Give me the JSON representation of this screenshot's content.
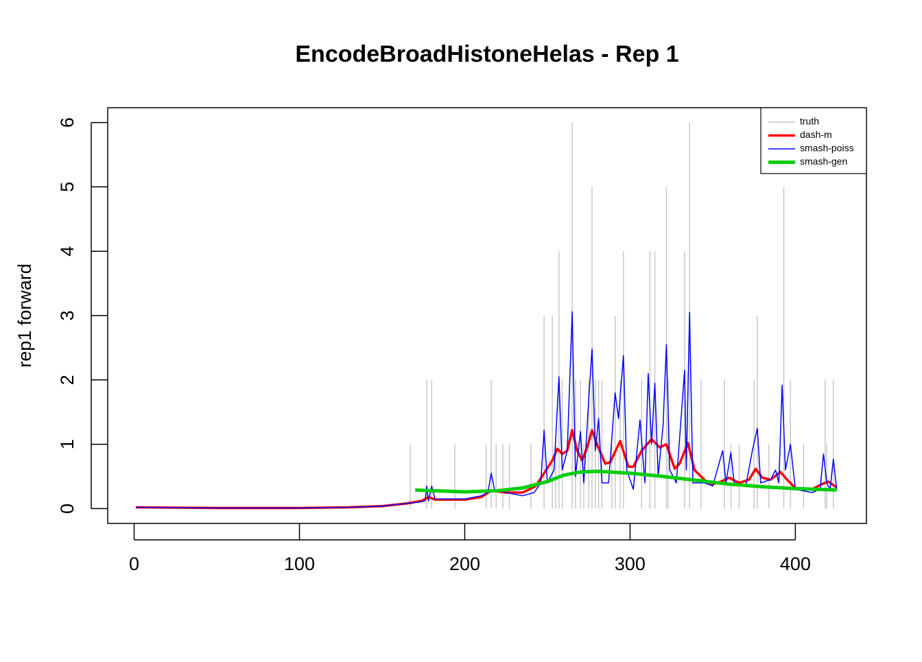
{
  "chart_data": {
    "type": "line",
    "title": "EncodeBroadHistoneHelas - Rep 1",
    "y_label": "rep1 forward",
    "xlim": [
      -16,
      443
    ],
    "ylim": [
      -0.23,
      6.23
    ],
    "xticks": [
      0,
      100,
      200,
      300,
      400
    ],
    "yticks": [
      0,
      1,
      2,
      3,
      4,
      5,
      6
    ],
    "legend": "top-right",
    "series": [
      {
        "name": "truth",
        "color": "#c8c8c8",
        "style": "h",
        "line_width": 1.5,
        "x": [
          167,
          177,
          180,
          194,
          213,
          216,
          219,
          223,
          227,
          240,
          248,
          253,
          255,
          257,
          259,
          265,
          267,
          270,
          272,
          275,
          277,
          279,
          281,
          283,
          289,
          291,
          294,
          296,
          307,
          312,
          315,
          322,
          323,
          333,
          336,
          343,
          357,
          361,
          366,
          375,
          377,
          384,
          393,
          397,
          405,
          418,
          419,
          423
        ],
        "values": [
          1,
          2,
          2,
          1,
          1,
          2,
          1,
          1,
          1,
          1,
          3,
          3,
          1,
          4,
          2,
          6,
          2,
          2,
          1,
          2,
          5,
          2,
          2,
          2,
          1,
          3,
          2,
          4,
          2,
          4,
          4,
          5,
          2,
          4,
          6,
          2,
          2,
          1,
          1,
          2,
          3,
          1,
          5,
          2,
          1,
          2,
          1,
          2
        ]
      },
      {
        "name": "dash-m",
        "color": "#ff0000",
        "style": "l",
        "line_width": 3.5,
        "x": [
          1,
          50,
          100,
          130,
          150,
          165,
          174,
          178,
          182,
          200,
          210,
          216,
          225,
          235,
          243,
          248,
          253,
          256,
          259,
          262,
          265,
          268,
          271,
          274,
          277,
          280,
          285,
          288,
          294,
          299,
          302,
          307,
          313,
          318,
          322,
          327,
          330,
          335,
          339,
          346,
          350,
          355,
          360,
          366,
          372,
          376,
          380,
          385,
          391,
          395,
          400,
          410,
          416,
          420,
          425
        ],
        "values": [
          0.02,
          0.01,
          0.01,
          0.02,
          0.04,
          0.08,
          0.12,
          0.18,
          0.14,
          0.14,
          0.18,
          0.28,
          0.25,
          0.25,
          0.35,
          0.55,
          0.75,
          0.93,
          0.85,
          0.9,
          1.22,
          0.9,
          0.75,
          0.95,
          1.22,
          1.0,
          0.7,
          0.72,
          1.05,
          0.65,
          0.65,
          0.9,
          1.08,
          0.95,
          1.0,
          0.62,
          0.7,
          1.02,
          0.6,
          0.42,
          0.38,
          0.42,
          0.48,
          0.4,
          0.45,
          0.62,
          0.48,
          0.45,
          0.57,
          0.45,
          0.32,
          0.3,
          0.38,
          0.42,
          0.33
        ]
      },
      {
        "name": "smash-poiss",
        "color": "#0000ff",
        "style": "l",
        "line_width": 1.5,
        "x": [
          1,
          50,
          100,
          130,
          150,
          165,
          172,
          176,
          177,
          178,
          180,
          182,
          190,
          200,
          210,
          214,
          216,
          218,
          225,
          235,
          242,
          246,
          248,
          250,
          254,
          257,
          259,
          262,
          265,
          267,
          270,
          272,
          275,
          277,
          279,
          281,
          283,
          287,
          291,
          293,
          296,
          298,
          302,
          306,
          309,
          311,
          313,
          315,
          317,
          320,
          322,
          324,
          328,
          333,
          334,
          336,
          338,
          345,
          350,
          356,
          358,
          361,
          363,
          370,
          374,
          377,
          379,
          385,
          388,
          390,
          392,
          394,
          397,
          400,
          410,
          415,
          417,
          419,
          421,
          423,
          425
        ],
        "values": [
          0.02,
          0.01,
          0.01,
          0.02,
          0.04,
          0.08,
          0.1,
          0.12,
          0.35,
          0.12,
          0.35,
          0.15,
          0.15,
          0.15,
          0.2,
          0.25,
          0.55,
          0.3,
          0.25,
          0.2,
          0.25,
          0.4,
          1.22,
          0.4,
          0.6,
          2.05,
          0.6,
          0.9,
          3.06,
          0.5,
          1.2,
          0.4,
          1.7,
          2.48,
          0.9,
          1.4,
          0.4,
          0.4,
          1.8,
          1.4,
          2.38,
          0.6,
          0.3,
          1.38,
          0.4,
          2.1,
          1.0,
          1.95,
          0.5,
          1.3,
          2.55,
          0.6,
          0.4,
          2.15,
          0.6,
          3.05,
          0.4,
          0.4,
          0.35,
          0.9,
          0.4,
          0.87,
          0.4,
          0.35,
          0.9,
          1.25,
          0.4,
          0.45,
          0.6,
          0.4,
          1.92,
          0.6,
          1.0,
          0.3,
          0.25,
          0.3,
          0.85,
          0.4,
          0.3,
          0.77,
          0.3
        ]
      },
      {
        "name": "smash-gen",
        "color": "#00cd00",
        "style": "l",
        "line_width": 5,
        "x": [
          170,
          180,
          200,
          220,
          235,
          250,
          260,
          270,
          280,
          300,
          320,
          340,
          360,
          380,
          400,
          425
        ],
        "values": [
          0.29,
          0.28,
          0.26,
          0.28,
          0.32,
          0.42,
          0.52,
          0.57,
          0.58,
          0.55,
          0.5,
          0.44,
          0.38,
          0.34,
          0.31,
          0.29
        ]
      }
    ]
  }
}
